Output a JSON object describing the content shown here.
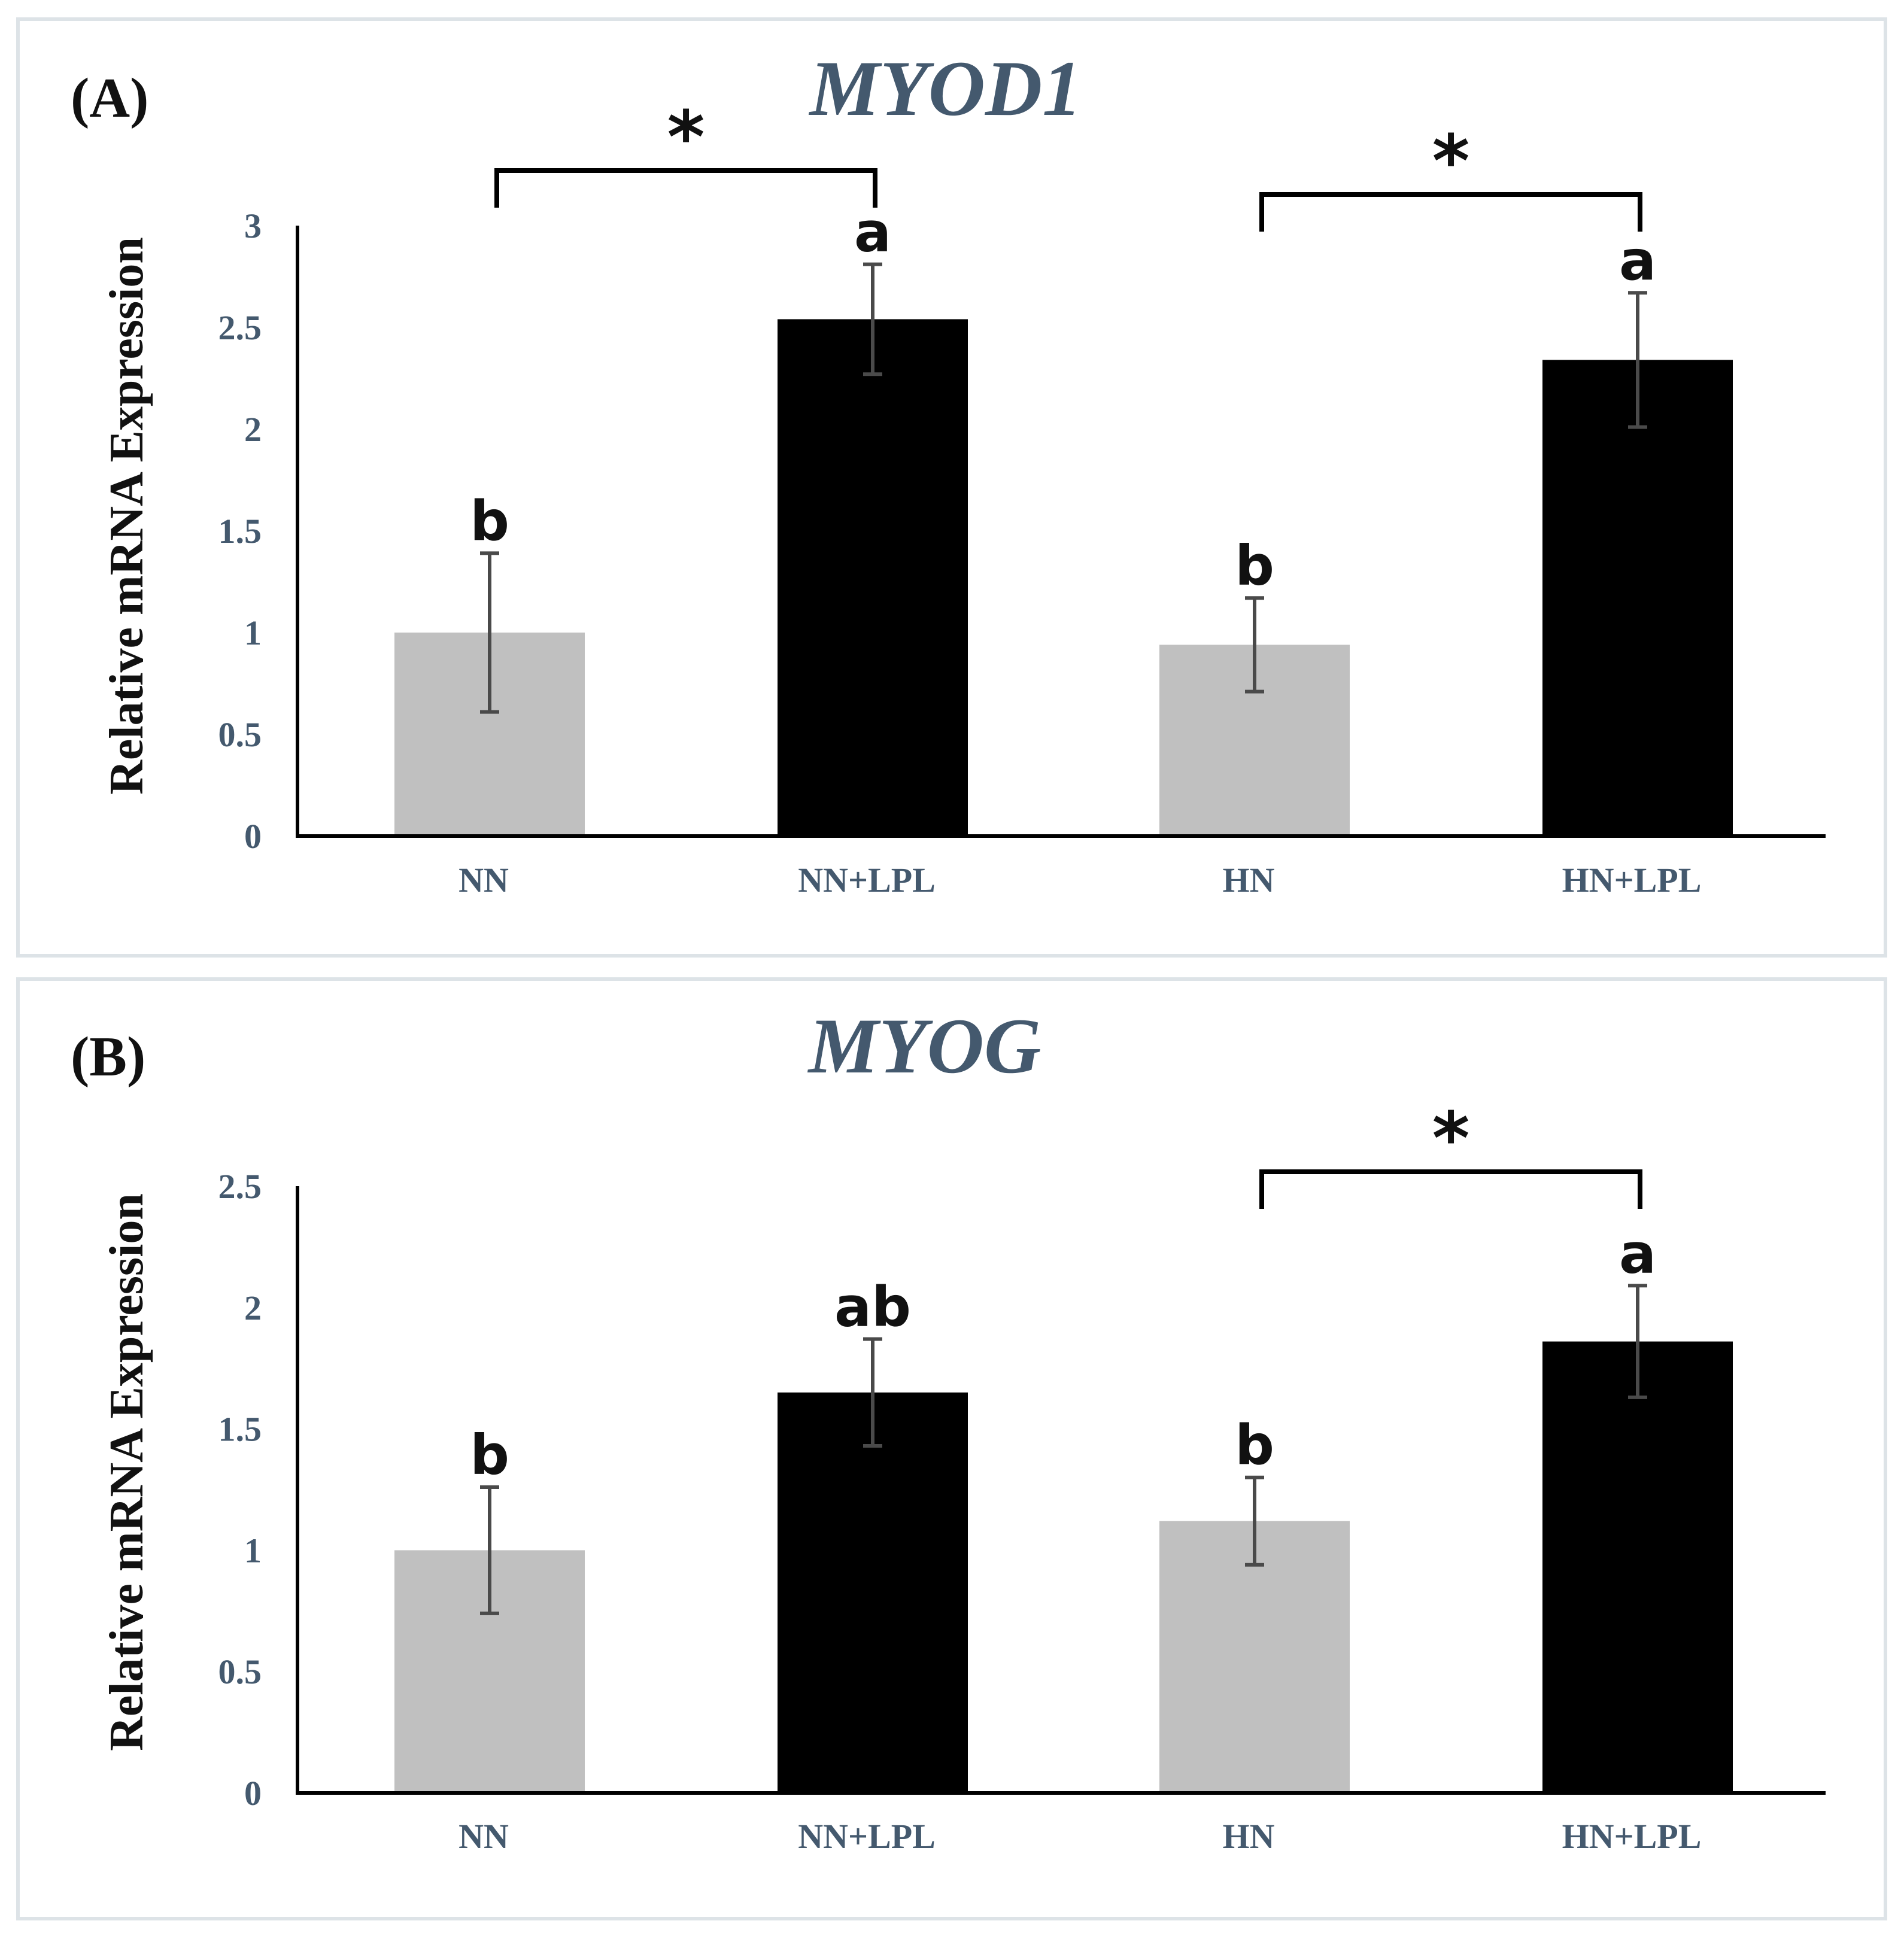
{
  "colors": {
    "bar_control": "#c0c0c0",
    "bar_lpl": "#000000",
    "title": "#44596e",
    "ticks": "#44596e"
  },
  "chart_data": [
    {
      "type": "bar",
      "panel": "(A)",
      "title": "MYOD1",
      "xlabel": "",
      "ylabel": "Relative mRNA Expression",
      "ylim": [
        0,
        3
      ],
      "yticks": [
        "0",
        "0.5",
        "1",
        "1.5",
        "2",
        "2.5",
        "3"
      ],
      "categories": [
        "NN",
        "NN+LPL",
        "HN",
        "HN+LPL"
      ],
      "values": [
        1.0,
        2.54,
        0.94,
        2.34
      ],
      "errors": [
        0.39,
        0.27,
        0.23,
        0.33
      ],
      "bar_colors": [
        "#c0c0c0",
        "#000000",
        "#c0c0c0",
        "#000000"
      ],
      "letters": [
        "b",
        "a",
        "b",
        "a"
      ],
      "significance": [
        {
          "from": 0,
          "to": 1,
          "label": "*"
        },
        {
          "from": 2,
          "to": 3,
          "label": "*"
        }
      ]
    },
    {
      "type": "bar",
      "panel": "(B)",
      "title": "MYOG",
      "xlabel": "",
      "ylabel": "Relative mRNA Expression",
      "ylim": [
        0,
        2.5
      ],
      "yticks": [
        "0",
        "0.5",
        "1",
        "1.5",
        "2",
        "2.5"
      ],
      "categories": [
        "NN",
        "NN+LPL",
        "HN",
        "HN+LPL"
      ],
      "values": [
        1.0,
        1.65,
        1.12,
        1.86
      ],
      "errors": [
        0.26,
        0.22,
        0.18,
        0.23
      ],
      "bar_colors": [
        "#c0c0c0",
        "#000000",
        "#c0c0c0",
        "#000000"
      ],
      "letters": [
        "b",
        "ab",
        "b",
        "a"
      ],
      "significance": [
        {
          "from": 2,
          "to": 3,
          "label": "*"
        }
      ]
    }
  ]
}
